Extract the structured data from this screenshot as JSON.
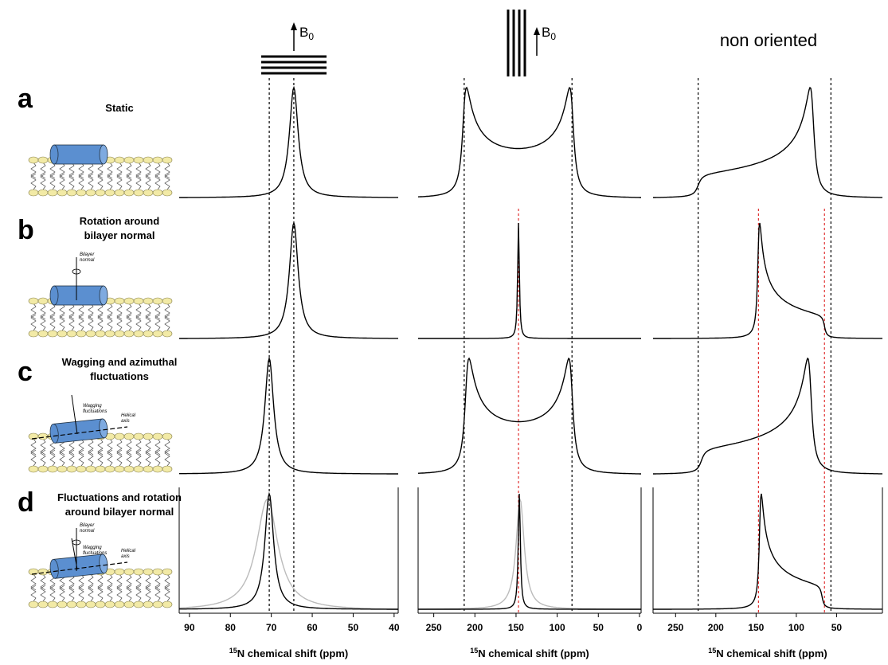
{
  "figure": {
    "rows": [
      {
        "letter": "a",
        "label": [
          "Static"
        ]
      },
      {
        "letter": "b",
        "label": [
          "Rotation around",
          "bilayer normal"
        ]
      },
      {
        "letter": "c",
        "label": [
          "Wagging and azimuthal",
          "fluctuations"
        ]
      },
      {
        "letter": "d",
        "label": [
          "Fluctuations and rotation",
          "around bilayer normal"
        ]
      }
    ],
    "annotations": {
      "bilayer": [
        "Bilayer",
        "normal"
      ],
      "wagging": [
        "Wagging",
        "fluctuations"
      ],
      "helical": [
        "Helical",
        "axis"
      ]
    },
    "field": "B",
    "field_sub": "0",
    "title": "non oriented"
  },
  "chart_data": [
    {
      "type": "line",
      "xlabel_sup": "15",
      "xlabel": "N chemical shift (ppm)",
      "xlim": [
        92.5,
        39
      ],
      "xticks": [
        90,
        80,
        70,
        60,
        50,
        40
      ],
      "guides": [
        {
          "value": 70.5,
          "color": "#000"
        },
        {
          "value": 64.5,
          "color": "#000"
        }
      ],
      "spectra": [
        [
          {
            "shape": "lorentz",
            "center": 64.5,
            "width": 1.3,
            "color": "#000"
          }
        ],
        [
          {
            "shape": "lorentz",
            "center": 64.5,
            "width": 1.3,
            "color": "#000"
          }
        ],
        [
          {
            "shape": "lorentz",
            "center": 70.5,
            "width": 1.3,
            "color": "#000"
          }
        ],
        [
          {
            "shape": "lorentz",
            "center": 71,
            "width": 3.2,
            "color": "#bbb"
          },
          {
            "shape": "lorentz",
            "center": 70.5,
            "width": 1.3,
            "color": "#000"
          }
        ]
      ]
    },
    {
      "type": "line",
      "xlabel_sup": "15",
      "xlabel": "N chemical shift (ppm)",
      "xlim": [
        269,
        -2
      ],
      "xticks": [
        250,
        200,
        150,
        100,
        50,
        0
      ],
      "guides": [
        {
          "value": 213,
          "color": "#000"
        },
        {
          "value": 82,
          "color": "#000"
        },
        {
          "value": 147,
          "color": "#e03030"
        }
      ],
      "spectra": [
        [
          {
            "shape": "horns",
            "lo": 82,
            "hi": 213,
            "width": 4,
            "color": "#000"
          }
        ],
        [
          {
            "shape": "lorentz",
            "center": 147,
            "width": 1.2,
            "color": "#000"
          }
        ],
        [
          {
            "shape": "horns",
            "lo": 83,
            "hi": 210,
            "width": 4,
            "color": "#000"
          }
        ],
        [
          {
            "shape": "lorentz",
            "center": 145,
            "width": 6,
            "color": "#bbb"
          },
          {
            "shape": "lorentz",
            "center": 146,
            "width": 1.5,
            "color": "#000"
          }
        ]
      ]
    },
    {
      "type": "line",
      "xlabel_sup": "15",
      "xlabel": "N chemical shift (ppm)",
      "xlim": [
        278,
        -7
      ],
      "xticks": [
        250,
        200,
        150,
        100,
        50
      ],
      "guides": [
        {
          "value": 222,
          "color": "#000"
        },
        {
          "value": 57,
          "color": "#000"
        },
        {
          "value": 147,
          "color": "#e03030"
        },
        {
          "value": 65,
          "color": "#e03030"
        }
      ],
      "spectra": [
        [
          {
            "shape": "powder",
            "perp": 80,
            "par": 222,
            "width": 4,
            "color": "#000"
          }
        ],
        [
          {
            "shape": "powder",
            "perp": 147,
            "par": 65,
            "width": 2,
            "color": "#000"
          }
        ],
        [
          {
            "shape": "powder",
            "perp": 83,
            "par": 218,
            "width": 4,
            "color": "#000"
          }
        ],
        [
          {
            "shape": "powder",
            "perp": 145,
            "par": 68,
            "width": 2,
            "color": "#000"
          }
        ]
      ]
    }
  ]
}
